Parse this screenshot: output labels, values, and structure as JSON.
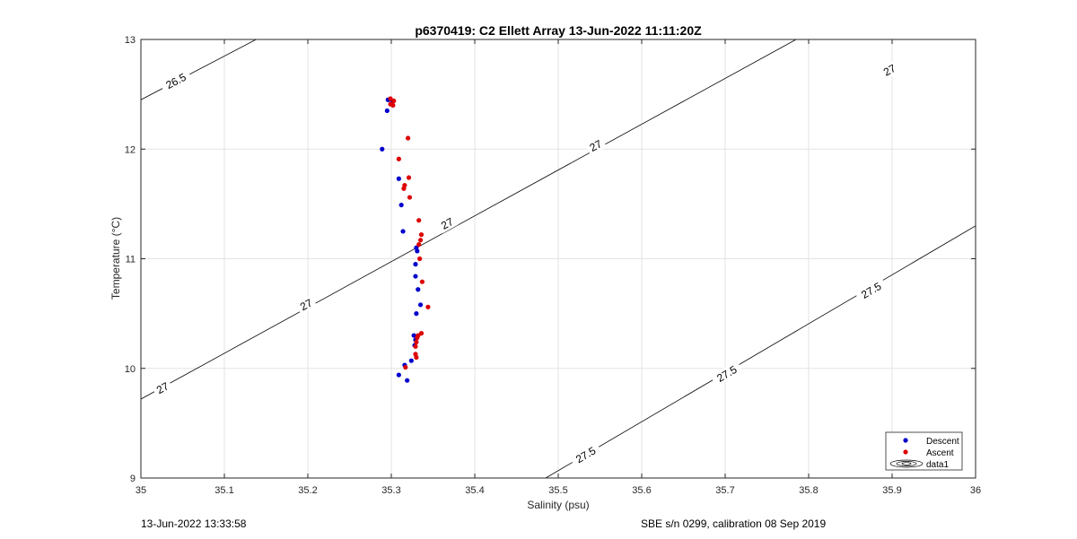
{
  "chart_data": {
    "type": "scatter",
    "title": "p6370419: C2 Ellett Array 13-Jun-2022 11:11:20Z",
    "xlabel": "Salinity (psu)",
    "ylabel": "Temperature (°C)",
    "xlim": [
      35,
      36
    ],
    "ylim": [
      9,
      13
    ],
    "xticks": [
      "35",
      "35.1",
      "35.2",
      "35.3",
      "35.4",
      "35.5",
      "35.6",
      "35.7",
      "35.8",
      "35.9",
      "36"
    ],
    "yticks": [
      "9",
      "10",
      "11",
      "12",
      "13"
    ],
    "grid": true,
    "legend_location": "bottom-right",
    "legend_entries": [
      "Descent",
      "Ascent",
      "data1"
    ],
    "series": [
      {
        "name": "Descent",
        "color": "#0000cc",
        "points": [
          [
            35.296,
            12.45
          ],
          [
            35.301,
            12.44
          ],
          [
            35.295,
            12.35
          ],
          [
            35.289,
            12.0
          ],
          [
            35.309,
            11.73
          ],
          [
            35.312,
            11.49
          ],
          [
            35.314,
            11.25
          ],
          [
            35.33,
            11.1
          ],
          [
            35.331,
            11.07
          ],
          [
            35.329,
            10.95
          ],
          [
            35.329,
            10.84
          ],
          [
            35.332,
            10.72
          ],
          [
            35.335,
            10.58
          ],
          [
            35.33,
            10.5
          ],
          [
            35.327,
            10.3
          ],
          [
            35.329,
            10.26
          ],
          [
            35.328,
            10.21
          ],
          [
            35.324,
            10.07
          ],
          [
            35.316,
            10.03
          ],
          [
            35.309,
            9.94
          ],
          [
            35.319,
            9.89
          ]
        ]
      },
      {
        "name": "Ascent",
        "color": "#dd0000",
        "points": [
          [
            35.299,
            12.46
          ],
          [
            35.303,
            12.44
          ],
          [
            35.299,
            12.41
          ],
          [
            35.302,
            12.4
          ],
          [
            35.32,
            12.1
          ],
          [
            35.309,
            11.91
          ],
          [
            35.321,
            11.74
          ],
          [
            35.316,
            11.67
          ],
          [
            35.315,
            11.64
          ],
          [
            35.322,
            11.56
          ],
          [
            35.333,
            11.35
          ],
          [
            35.336,
            11.22
          ],
          [
            35.335,
            11.17
          ],
          [
            35.333,
            11.13
          ],
          [
            35.334,
            11.0
          ],
          [
            35.337,
            10.79
          ],
          [
            35.344,
            10.56
          ],
          [
            35.336,
            10.32
          ],
          [
            35.332,
            10.3
          ],
          [
            35.331,
            10.28
          ],
          [
            35.33,
            10.24
          ],
          [
            35.329,
            10.2
          ],
          [
            35.329,
            10.13
          ],
          [
            35.33,
            10.1
          ],
          [
            35.317,
            10.01
          ]
        ]
      }
    ],
    "contours": [
      {
        "level": "26.5",
        "points": [
          [
            35.0,
            12.45
          ],
          [
            35.138,
            13.0
          ]
        ]
      },
      {
        "level": "27",
        "points": [
          [
            35.0,
            9.72
          ],
          [
            35.785,
            13.0
          ]
        ]
      },
      {
        "level": "27.5",
        "points": [
          [
            35.485,
            9.0
          ],
          [
            36.0,
            11.3
          ]
        ]
      }
    ],
    "contour_labels": [
      {
        "text": "26.5",
        "s": 35.042,
        "t": 12.62
      },
      {
        "text": "27",
        "s": 35.897,
        "t": 12.72
      },
      {
        "text": "27",
        "s": 35.545,
        "t": 12.03
      },
      {
        "text": "27",
        "s": 35.367,
        "t": 11.32
      },
      {
        "text": "27",
        "s": 35.198,
        "t": 10.58
      },
      {
        "text": "27",
        "s": 35.026,
        "t": 9.82
      },
      {
        "text": "27.5",
        "s": 35.875,
        "t": 10.71
      },
      {
        "text": "27.5",
        "s": 35.702,
        "t": 9.95
      },
      {
        "text": "27.5",
        "s": 35.533,
        "t": 9.21
      }
    ]
  },
  "footer": {
    "timestamp": "13-Jun-2022 13:33:58",
    "calibration": "SBE s/n 0299, calibration 08 Sep 2019"
  }
}
